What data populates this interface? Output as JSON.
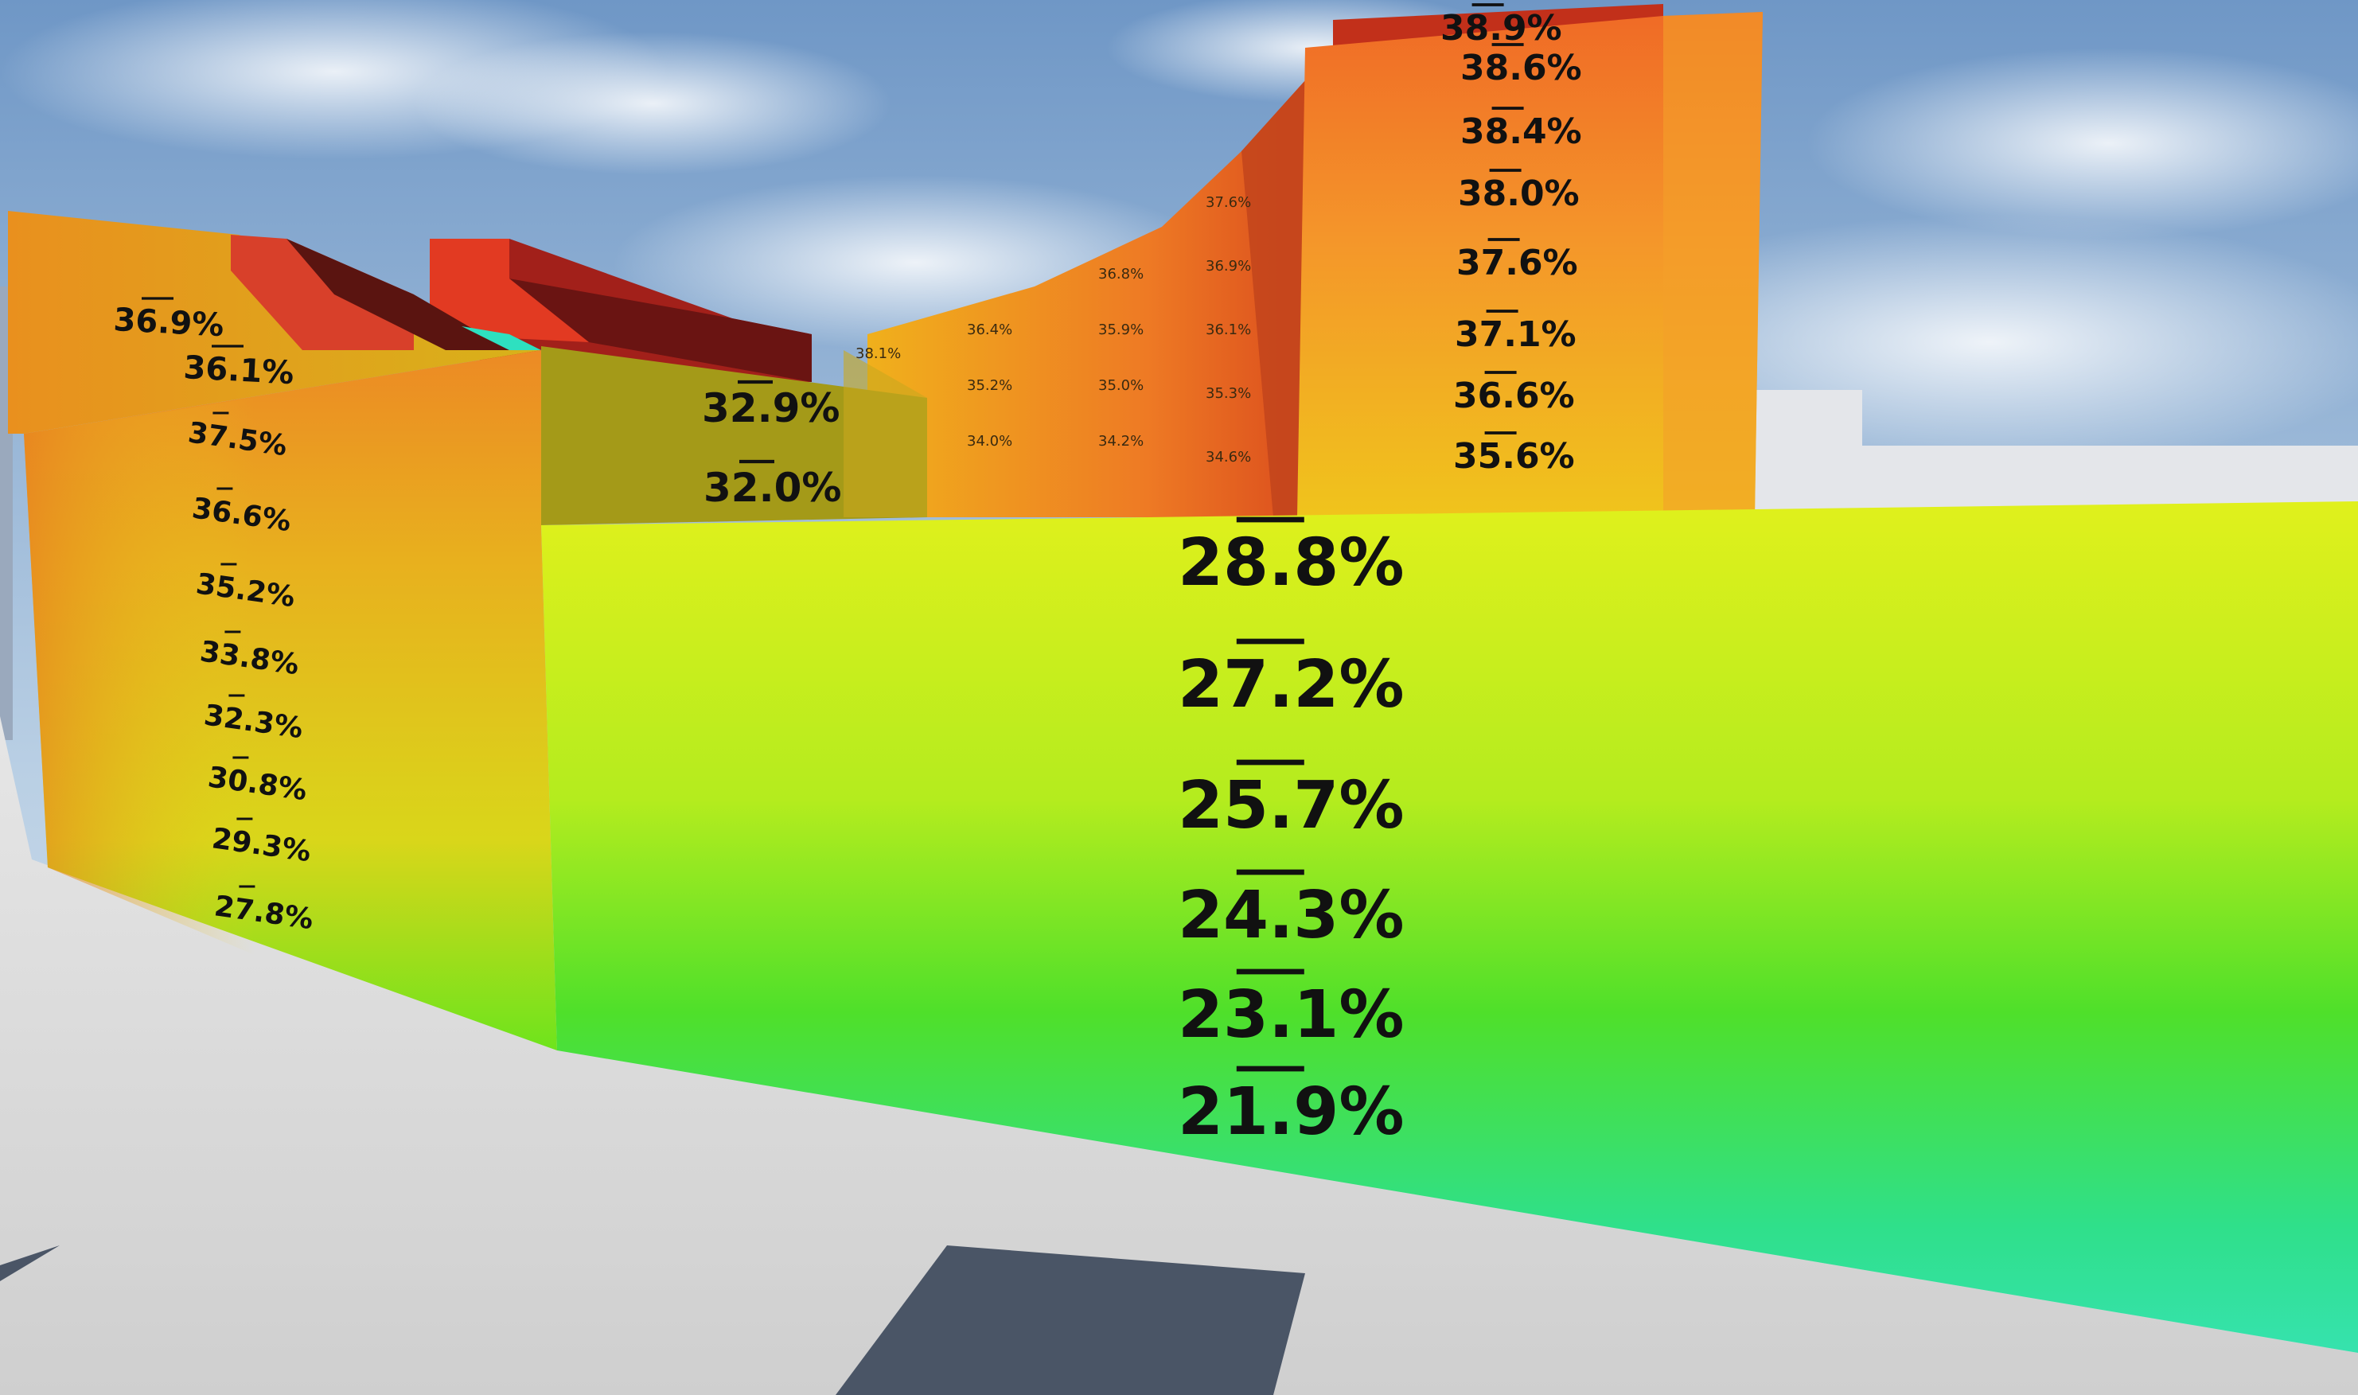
{
  "labels": {
    "tower": [
      "38.9%",
      "38.6%",
      "38.4%",
      "38.0%",
      "37.6%",
      "37.1%",
      "36.6%",
      "35.6%"
    ],
    "left_roof": [
      "36.9%",
      "36.1%"
    ],
    "left_wall": [
      "37.5%",
      "36.6%",
      "35.2%",
      "33.8%",
      "32.3%",
      "30.8%",
      "29.3%",
      "27.8%"
    ],
    "center_upper": [
      "32.9%",
      "32.0%"
    ],
    "front_wall": [
      "28.8%",
      "27.2%",
      "25.7%",
      "24.3%",
      "23.1%",
      "21.9%"
    ]
  },
  "colors": {
    "sky_top": "#6f97c6",
    "sky_bottom": "#d7e4ef",
    "hot": "#d83a16",
    "warm": "#f2902a",
    "mid": "#e8cc1a",
    "cool": "#b8ee1c",
    "cold": "#2ee0a8",
    "ground": "#dcdcdc"
  }
}
